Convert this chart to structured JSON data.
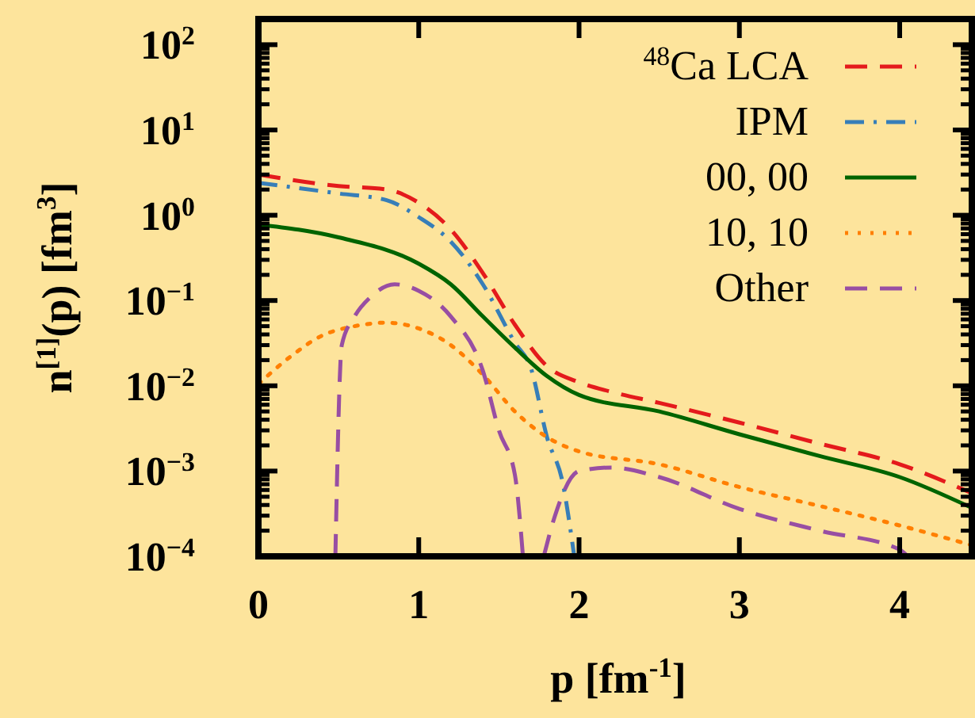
{
  "chart_data": {
    "type": "line",
    "xlabel": "p [fm$^{-1}$]",
    "ylabel": "n$^{[1]}$(p) [fm$^{3}$]",
    "log": "y",
    "grid": false,
    "legend": "top right",
    "xlim": [
      0,
      4.45
    ],
    "xticks": [
      0,
      1,
      2,
      3,
      4
    ],
    "ylim": [
      0.0001,
      200
    ],
    "yticks": [
      {
        "value": 0.0001,
        "label": "10$^{−4}$"
      },
      {
        "value": 0.001,
        "label": "10$^{−3}$"
      },
      {
        "value": 0.01,
        "label": "10$^{−2}$"
      },
      {
        "value": 0.1,
        "label": "10$^{−1}$"
      },
      {
        "value": 1,
        "label": "10$^{0}$"
      },
      {
        "value": 10,
        "label": "10$^{1}$"
      },
      {
        "value": 100,
        "label": "10$^{2}$"
      }
    ],
    "series": [
      {
        "name": "$^{48}$Ca LCA",
        "color": "#e41a1c",
        "line_style": "dashed",
        "x": [
          0,
          0.5,
          0.8,
          1,
          1.2,
          1.4,
          1.6,
          1.8,
          2,
          2.2,
          2.5,
          3,
          3.5,
          4,
          4.45
        ],
        "values": [
          3.0,
          2.2,
          2.0,
          1.4,
          0.68,
          0.21,
          0.052,
          0.017,
          0.011,
          0.0085,
          0.0063,
          0.0037,
          0.0021,
          0.0012,
          0.00055
        ]
      },
      {
        "name": "IPM",
        "color": "#377eb8",
        "line_style": "dashdot",
        "x": [
          0,
          0.5,
          0.8,
          1,
          1.2,
          1.4,
          1.6,
          1.7,
          1.8,
          1.9,
          1.97
        ],
        "values": [
          2.4,
          1.8,
          1.5,
          0.95,
          0.49,
          0.155,
          0.032,
          0.016,
          0.0025,
          0.0007,
          0.0001
        ]
      },
      {
        "name": "00, 00",
        "color": "#006400",
        "line_style": "solid",
        "x": [
          0,
          0.5,
          1,
          1.2,
          1.4,
          1.6,
          1.8,
          2,
          2.5,
          3,
          3.5,
          4,
          4.45
        ],
        "values": [
          0.78,
          0.55,
          0.27,
          0.155,
          0.065,
          0.028,
          0.013,
          0.0078,
          0.005,
          0.0027,
          0.0015,
          0.00085,
          0.00037
        ]
      },
      {
        "name": "10, 10",
        "color": "#ff7f00",
        "line_style": "dotted",
        "x": [
          0,
          0.2,
          0.4,
          0.6,
          0.8,
          1,
          1.2,
          1.4,
          1.6,
          1.8,
          2,
          2.5,
          3,
          3.5,
          4,
          4.45
        ],
        "values": [
          0.0105,
          0.022,
          0.039,
          0.05,
          0.055,
          0.047,
          0.03,
          0.0135,
          0.005,
          0.0025,
          0.0017,
          0.0012,
          0.00065,
          0.00039,
          0.00023,
          0.000135
        ]
      },
      {
        "name": "Other",
        "color": "#984ea3",
        "line_style": "dashed",
        "x": [
          0.48,
          0.52,
          0.6,
          0.7,
          0.85,
          1,
          1.2,
          1.4,
          1.5,
          1.6,
          1.65,
          1.7,
          1.78,
          1.85,
          2,
          2.2,
          2.5,
          3,
          3.5,
          4,
          4.05
        ],
        "values": [
          0.0001,
          0.03,
          0.065,
          0.11,
          0.155,
          0.13,
          0.065,
          0.015,
          0.003,
          0.0009,
          0.0001,
          null,
          0.0001,
          0.0003,
          0.001,
          0.0011,
          0.00085,
          0.00036,
          0.0002,
          0.00012,
          0.0001
        ]
      }
    ]
  }
}
